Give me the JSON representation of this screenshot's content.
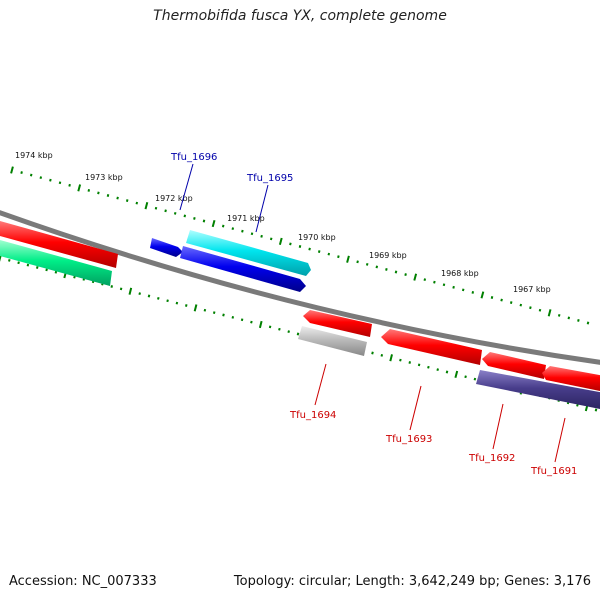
{
  "title": "Thermobifida fusca YX, complete genome",
  "accession": "Accession: NC_007333",
  "summary": "Topology: circular; Length: 3,642,249 bp; Genes: 3,176",
  "scale_labels": [
    "1974 kbp",
    "1973 kbp",
    "1972 kbp",
    "1971 kbp",
    "1970 kbp",
    "1969 kbp",
    "1968 kbp",
    "1967 kbp"
  ],
  "gene_labels": [
    {
      "text": "Tfu_1696",
      "color": "#0000aa"
    },
    {
      "text": "Tfu_1695",
      "color": "#0000aa"
    },
    {
      "text": "Tfu_1694",
      "color": "#cc0000"
    },
    {
      "text": "Tfu_1693",
      "color": "#cc0000"
    },
    {
      "text": "Tfu_1692",
      "color": "#cc0000"
    },
    {
      "text": "Tfu_1691",
      "color": "#cc0000"
    }
  ],
  "colors": {
    "backbone": "#808080",
    "forward_gene": "#ff0000",
    "reverse_gene": "#0000ee",
    "cyan_feature": "#00e5ee",
    "green_feature": "#00ee88",
    "grey_feature": "#bbbbbb",
    "purple_feature": "#483d8b",
    "tick": "#008000"
  }
}
